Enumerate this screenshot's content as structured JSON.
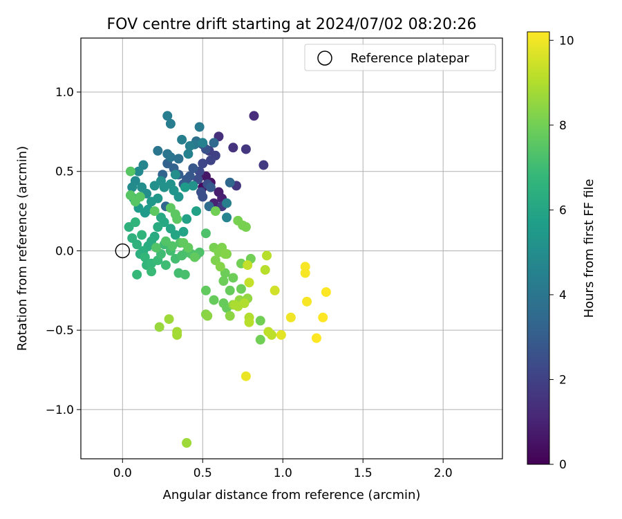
{
  "chart_data": {
    "type": "scatter",
    "title": "FOV centre drift starting at 2024/07/02 08:20:26",
    "xlabel": "Angular distance from reference (arcmin)",
    "ylabel": "Rotation from reference (arcmin)",
    "xlim": [
      -0.26,
      2.37
    ],
    "ylim": [
      -1.31,
      1.34
    ],
    "xticks": [
      0.0,
      0.5,
      1.0,
      1.5,
      2.0
    ],
    "xtick_labels": [
      "0.0",
      "0.5",
      "1.0",
      "1.5",
      "2.0"
    ],
    "yticks": [
      -1.0,
      -0.5,
      0.0,
      0.5,
      1.0
    ],
    "ytick_labels": [
      "−1.0",
      "−0.5",
      "0.0",
      "0.5",
      "1.0"
    ],
    "grid": true,
    "legend": {
      "position": "top-right",
      "entries": [
        {
          "label": "Reference platepar",
          "marker": "open-circle",
          "x": 0.0,
          "y": 0.0
        }
      ]
    },
    "colorbar": {
      "label": "Hours from first FF file",
      "range": [
        0,
        10.2
      ],
      "ticks": [
        0,
        2,
        4,
        6,
        8,
        10
      ],
      "tick_labels": [
        "0",
        "2",
        "4",
        "6",
        "8",
        "10"
      ],
      "colormap": "viridis",
      "colors": [
        "#440154",
        "#482878",
        "#3e4989",
        "#31688e",
        "#26828e",
        "#1f9e89",
        "#35b779",
        "#6ece58",
        "#b5de2b",
        "#fde725"
      ]
    },
    "points": [
      {
        "x": 0.5,
        "y": 0.4,
        "h": 0.3
      },
      {
        "x": 0.55,
        "y": 0.43,
        "h": 0.5
      },
      {
        "x": 0.52,
        "y": 0.47,
        "h": 0.6
      },
      {
        "x": 0.6,
        "y": 0.37,
        "h": 0.8
      },
      {
        "x": 0.62,
        "y": 0.33,
        "h": 0.9
      },
      {
        "x": 0.57,
        "y": 0.3,
        "h": 1.0
      },
      {
        "x": 0.82,
        "y": 0.85,
        "h": 1.3
      },
      {
        "x": 0.6,
        "y": 0.72,
        "h": 1.4
      },
      {
        "x": 0.69,
        "y": 0.65,
        "h": 1.5
      },
      {
        "x": 0.77,
        "y": 0.64,
        "h": 1.6
      },
      {
        "x": 0.88,
        "y": 0.54,
        "h": 1.8
      },
      {
        "x": 0.71,
        "y": 0.41,
        "h": 1.6
      },
      {
        "x": 0.62,
        "y": 0.28,
        "h": 1.7
      },
      {
        "x": 0.54,
        "y": 0.63,
        "h": 1.9
      },
      {
        "x": 0.58,
        "y": 0.6,
        "h": 2.0
      },
      {
        "x": 0.55,
        "y": 0.57,
        "h": 2.1
      },
      {
        "x": 0.5,
        "y": 0.55,
        "h": 2.2
      },
      {
        "x": 0.48,
        "y": 0.5,
        "h": 2.3
      },
      {
        "x": 0.47,
        "y": 0.45,
        "h": 2.4
      },
      {
        "x": 0.53,
        "y": 0.42,
        "h": 2.4
      },
      {
        "x": 0.49,
        "y": 0.37,
        "h": 2.5
      },
      {
        "x": 0.5,
        "y": 0.34,
        "h": 2.5
      },
      {
        "x": 0.52,
        "y": 0.64,
        "h": 2.6
      },
      {
        "x": 0.5,
        "y": 0.67,
        "h": 2.7
      },
      {
        "x": 0.42,
        "y": 0.47,
        "h": 2.8
      },
      {
        "x": 0.44,
        "y": 0.52,
        "h": 2.8
      },
      {
        "x": 0.4,
        "y": 0.45,
        "h": 2.9
      },
      {
        "x": 0.38,
        "y": 0.42,
        "h": 3.0
      },
      {
        "x": 0.35,
        "y": 0.48,
        "h": 3.1
      },
      {
        "x": 0.32,
        "y": 0.52,
        "h": 3.2
      },
      {
        "x": 0.55,
        "y": 0.4,
        "h": 2.9
      },
      {
        "x": 0.28,
        "y": 0.55,
        "h": 3.2
      },
      {
        "x": 0.25,
        "y": 0.48,
        "h": 3.3
      },
      {
        "x": 0.27,
        "y": 0.28,
        "h": 3.4
      },
      {
        "x": 0.57,
        "y": 0.68,
        "h": 3.5
      },
      {
        "x": 0.54,
        "y": 0.28,
        "h": 3.6
      },
      {
        "x": 0.67,
        "y": 0.43,
        "h": 3.4
      },
      {
        "x": 0.46,
        "y": 0.69,
        "h": 3.7
      },
      {
        "x": 0.35,
        "y": 0.58,
        "h": 3.8
      },
      {
        "x": 0.3,
        "y": 0.59,
        "h": 3.9
      },
      {
        "x": 0.28,
        "y": 0.61,
        "h": 4.0
      },
      {
        "x": 0.22,
        "y": 0.63,
        "h": 4.0
      },
      {
        "x": 0.45,
        "y": 0.67,
        "h": 4.1
      },
      {
        "x": 0.48,
        "y": 0.78,
        "h": 4.2
      },
      {
        "x": 0.28,
        "y": 0.85,
        "h": 4.3
      },
      {
        "x": 0.3,
        "y": 0.8,
        "h": 4.3
      },
      {
        "x": 0.37,
        "y": 0.7,
        "h": 4.4
      },
      {
        "x": 0.42,
        "y": 0.66,
        "h": 4.4
      },
      {
        "x": 0.5,
        "y": 0.68,
        "h": 4.5
      },
      {
        "x": 0.41,
        "y": 0.61,
        "h": 4.5
      },
      {
        "x": 0.65,
        "y": 0.3,
        "h": 4.4
      },
      {
        "x": 0.65,
        "y": 0.21,
        "h": 4.6
      },
      {
        "x": 0.13,
        "y": 0.54,
        "h": 4.7
      },
      {
        "x": 0.1,
        "y": 0.5,
        "h": 4.8
      },
      {
        "x": 0.08,
        "y": 0.44,
        "h": 4.8
      },
      {
        "x": 0.06,
        "y": 0.4,
        "h": 4.9
      },
      {
        "x": 0.12,
        "y": 0.4,
        "h": 5.0
      },
      {
        "x": 0.15,
        "y": 0.36,
        "h": 5.0
      },
      {
        "x": 0.2,
        "y": 0.41,
        "h": 5.1
      },
      {
        "x": 0.24,
        "y": 0.44,
        "h": 5.1
      },
      {
        "x": 0.26,
        "y": 0.4,
        "h": 5.2
      },
      {
        "x": 0.3,
        "y": 0.42,
        "h": 5.2
      },
      {
        "x": 0.32,
        "y": 0.38,
        "h": 5.3
      },
      {
        "x": 0.35,
        "y": 0.34,
        "h": 5.3
      },
      {
        "x": 0.22,
        "y": 0.33,
        "h": 5.4
      },
      {
        "x": 0.18,
        "y": 0.31,
        "h": 5.4
      },
      {
        "x": 0.16,
        "y": 0.26,
        "h": 5.5
      },
      {
        "x": 0.14,
        "y": 0.24,
        "h": 5.5
      },
      {
        "x": 0.1,
        "y": 0.27,
        "h": 5.6
      },
      {
        "x": 0.07,
        "y": 0.33,
        "h": 5.6
      },
      {
        "x": 0.33,
        "y": 0.48,
        "h": 5.0
      },
      {
        "x": 0.44,
        "y": 0.41,
        "h": 5.2
      },
      {
        "x": 0.46,
        "y": 0.25,
        "h": 5.8
      },
      {
        "x": 0.39,
        "y": 0.4,
        "h": 5.6
      },
      {
        "x": 0.4,
        "y": 0.2,
        "h": 5.8
      },
      {
        "x": 0.38,
        "y": 0.12,
        "h": 5.9
      },
      {
        "x": 0.33,
        "y": 0.1,
        "h": 6.0
      },
      {
        "x": 0.3,
        "y": 0.14,
        "h": 6.0
      },
      {
        "x": 0.26,
        "y": 0.18,
        "h": 6.1
      },
      {
        "x": 0.24,
        "y": 0.21,
        "h": 6.1
      },
      {
        "x": 0.22,
        "y": 0.15,
        "h": 6.2
      },
      {
        "x": 0.2,
        "y": 0.09,
        "h": 6.2
      },
      {
        "x": 0.18,
        "y": 0.06,
        "h": 6.3
      },
      {
        "x": 0.16,
        "y": 0.03,
        "h": 6.3
      },
      {
        "x": 0.13,
        "y": 0.0,
        "h": 6.4
      },
      {
        "x": 0.11,
        "y": -0.02,
        "h": 6.4
      },
      {
        "x": 0.09,
        "y": 0.04,
        "h": 6.5
      },
      {
        "x": 0.06,
        "y": 0.08,
        "h": 6.5
      },
      {
        "x": 0.04,
        "y": 0.15,
        "h": 6.5
      },
      {
        "x": 0.08,
        "y": 0.18,
        "h": 6.6
      },
      {
        "x": 0.12,
        "y": 0.1,
        "h": 6.6
      },
      {
        "x": 0.14,
        "y": -0.04,
        "h": 6.7
      },
      {
        "x": 0.15,
        "y": -0.09,
        "h": 6.7
      },
      {
        "x": 0.09,
        "y": -0.15,
        "h": 6.8
      },
      {
        "x": 0.18,
        "y": -0.08,
        "h": 6.8
      },
      {
        "x": 0.22,
        "y": -0.06,
        "h": 6.9
      },
      {
        "x": 0.18,
        "y": -0.13,
        "h": 6.9
      },
      {
        "x": 0.27,
        "y": -0.09,
        "h": 7.0
      },
      {
        "x": 0.24,
        "y": -0.02,
        "h": 7.0
      },
      {
        "x": 0.26,
        "y": 0.04,
        "h": 7.0
      },
      {
        "x": 0.3,
        "y": 0.0,
        "h": 7.1
      },
      {
        "x": 0.33,
        "y": -0.05,
        "h": 7.1
      },
      {
        "x": 0.35,
        "y": -0.14,
        "h": 7.1
      },
      {
        "x": 0.39,
        "y": -0.15,
        "h": 7.2
      },
      {
        "x": 0.37,
        "y": -0.03,
        "h": 7.2
      },
      {
        "x": 0.4,
        "y": -0.01,
        "h": 7.2
      },
      {
        "x": 0.43,
        "y": -0.02,
        "h": 7.3
      },
      {
        "x": 0.46,
        "y": -0.03,
        "h": 7.3
      },
      {
        "x": 0.48,
        "y": -0.01,
        "h": 7.3
      },
      {
        "x": 0.52,
        "y": 0.11,
        "h": 7.3
      },
      {
        "x": 0.36,
        "y": 0.05,
        "h": 7.4
      },
      {
        "x": 0.31,
        "y": 0.03,
        "h": 7.4
      },
      {
        "x": 0.27,
        "y": 0.06,
        "h": 7.4
      },
      {
        "x": 0.21,
        "y": 0.02,
        "h": 7.4
      },
      {
        "x": 0.05,
        "y": 0.35,
        "h": 7.5
      },
      {
        "x": 0.08,
        "y": 0.31,
        "h": 7.5
      },
      {
        "x": 0.11,
        "y": 0.34,
        "h": 7.5
      },
      {
        "x": 0.05,
        "y": 0.5,
        "h": 7.5
      },
      {
        "x": 0.2,
        "y": 0.25,
        "h": 7.6
      },
      {
        "x": 0.3,
        "y": 0.27,
        "h": 7.6
      },
      {
        "x": 0.33,
        "y": 0.23,
        "h": 7.6
      },
      {
        "x": 0.34,
        "y": 0.2,
        "h": 7.6
      },
      {
        "x": 0.38,
        "y": 0.05,
        "h": 7.7
      },
      {
        "x": 0.41,
        "y": 0.02,
        "h": 7.7
      },
      {
        "x": 0.45,
        "y": -0.04,
        "h": 7.7
      },
      {
        "x": 0.52,
        "y": -0.25,
        "h": 7.7
      },
      {
        "x": 0.57,
        "y": -0.31,
        "h": 7.8
      },
      {
        "x": 0.63,
        "y": -0.33,
        "h": 7.8
      },
      {
        "x": 0.65,
        "y": -0.36,
        "h": 7.8
      },
      {
        "x": 0.67,
        "y": -0.25,
        "h": 7.8
      },
      {
        "x": 0.69,
        "y": -0.17,
        "h": 7.9
      },
      {
        "x": 0.63,
        "y": -0.19,
        "h": 7.9
      },
      {
        "x": 0.64,
        "y": -0.14,
        "h": 7.9
      },
      {
        "x": 0.74,
        "y": -0.24,
        "h": 7.9
      },
      {
        "x": 0.74,
        "y": -0.08,
        "h": 8.0
      },
      {
        "x": 0.8,
        "y": -0.05,
        "h": 8.0
      },
      {
        "x": 0.86,
        "y": -0.44,
        "h": 8.0
      },
      {
        "x": 0.86,
        "y": -0.56,
        "h": 8.0
      },
      {
        "x": 0.58,
        "y": 0.25,
        "h": 8.0
      },
      {
        "x": 0.72,
        "y": 0.19,
        "h": 8.1
      },
      {
        "x": 0.75,
        "y": 0.16,
        "h": 8.1
      },
      {
        "x": 0.77,
        "y": 0.15,
        "h": 8.1
      },
      {
        "x": 0.57,
        "y": 0.02,
        "h": 8.1
      },
      {
        "x": 0.62,
        "y": 0.02,
        "h": 8.2
      },
      {
        "x": 0.6,
        "y": -0.01,
        "h": 8.2
      },
      {
        "x": 0.65,
        "y": -0.02,
        "h": 8.2
      },
      {
        "x": 0.58,
        "y": -0.06,
        "h": 8.2
      },
      {
        "x": 0.61,
        "y": -0.1,
        "h": 8.3
      },
      {
        "x": 0.64,
        "y": -0.02,
        "h": 8.3
      },
      {
        "x": 0.52,
        "y": -0.4,
        "h": 8.3
      },
      {
        "x": 0.53,
        "y": -0.41,
        "h": 8.4
      },
      {
        "x": 0.67,
        "y": -0.41,
        "h": 8.4
      },
      {
        "x": 0.69,
        "y": -0.34,
        "h": 8.4
      },
      {
        "x": 0.73,
        "y": -0.31,
        "h": 8.5
      },
      {
        "x": 0.78,
        "y": -0.3,
        "h": 8.5
      },
      {
        "x": 0.23,
        "y": -0.48,
        "h": 8.6
      },
      {
        "x": 0.29,
        "y": -0.43,
        "h": 8.7
      },
      {
        "x": 0.34,
        "y": -0.51,
        "h": 8.8
      },
      {
        "x": 0.34,
        "y": -0.53,
        "h": 8.8
      },
      {
        "x": 0.4,
        "y": -1.21,
        "h": 8.7
      },
      {
        "x": 0.7,
        "y": -0.34,
        "h": 8.9
      },
      {
        "x": 0.72,
        "y": -0.35,
        "h": 8.9
      },
      {
        "x": 0.76,
        "y": -0.33,
        "h": 9.0
      },
      {
        "x": 0.79,
        "y": -0.42,
        "h": 9.0
      },
      {
        "x": 0.79,
        "y": -0.45,
        "h": 9.1
      },
      {
        "x": 0.9,
        "y": -0.03,
        "h": 9.1
      },
      {
        "x": 0.89,
        "y": -0.12,
        "h": 9.1
      },
      {
        "x": 0.91,
        "y": -0.51,
        "h": 9.2
      },
      {
        "x": 0.93,
        "y": -0.53,
        "h": 9.2
      },
      {
        "x": 0.79,
        "y": -0.2,
        "h": 9.3
      },
      {
        "x": 0.78,
        "y": -0.09,
        "h": 9.3
      },
      {
        "x": 0.95,
        "y": -0.25,
        "h": 9.5
      },
      {
        "x": 0.99,
        "y": -0.53,
        "h": 9.8
      },
      {
        "x": 0.77,
        "y": -0.79,
        "h": 9.9
      },
      {
        "x": 1.05,
        "y": -0.42,
        "h": 10.0
      },
      {
        "x": 1.14,
        "y": -0.1,
        "h": 10.1
      },
      {
        "x": 1.14,
        "y": -0.14,
        "h": 10.1
      },
      {
        "x": 1.15,
        "y": -0.32,
        "h": 10.1
      },
      {
        "x": 1.21,
        "y": -0.55,
        "h": 10.2
      },
      {
        "x": 1.25,
        "y": -0.42,
        "h": 10.2
      },
      {
        "x": 1.27,
        "y": -0.26,
        "h": 10.2
      }
    ]
  }
}
